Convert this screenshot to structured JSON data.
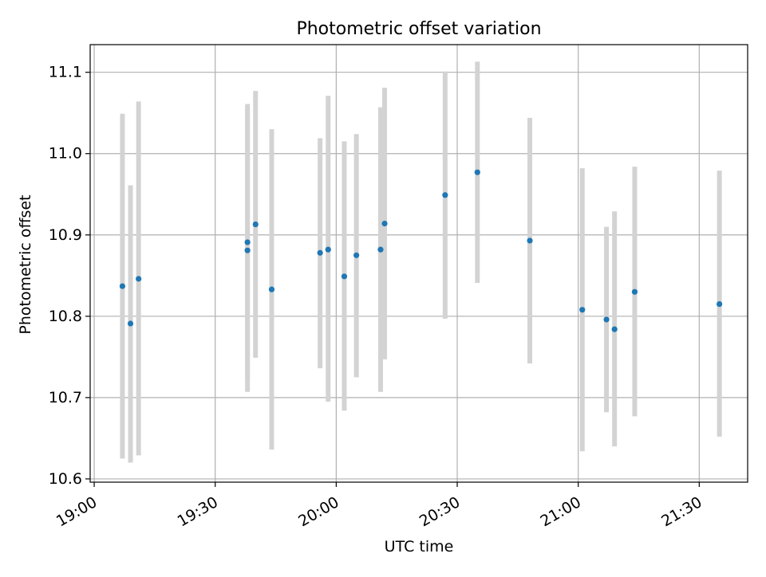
{
  "chart_data": {
    "type": "scatter",
    "title": "Photometric offset variation",
    "xlabel": "UTC time",
    "ylabel": "Photometric offset",
    "x_ticks": [
      "19:00",
      "19:30",
      "20:00",
      "20:30",
      "21:00",
      "21:30"
    ],
    "y_ticks": [
      "10.6",
      "10.7",
      "10.8",
      "10.9",
      "11.0",
      "11.1"
    ],
    "xlim": [
      "18:59",
      "21:42"
    ],
    "ylim": [
      10.596,
      11.134
    ],
    "grid": true,
    "colors": {
      "point": "#1f77b4",
      "errorbar": "#d3d3d3",
      "grid": "#b0b0b0",
      "axes": "#000000"
    },
    "series": [
      {
        "points": [
          {
            "x": "19:07",
            "y": 10.837,
            "ylow": 10.625,
            "yhigh": 11.049
          },
          {
            "x": "19:09",
            "y": 10.791,
            "ylow": 10.62,
            "yhigh": 10.961
          },
          {
            "x": "19:11",
            "y": 10.846,
            "ylow": 10.629,
            "yhigh": 11.064
          },
          {
            "x": "19:38",
            "y": 10.891,
            "ylow": 10.721,
            "yhigh": 11.061
          },
          {
            "x": "19:38",
            "y": 10.881,
            "ylow": 10.707,
            "yhigh": 11.055
          },
          {
            "x": "19:40",
            "y": 10.913,
            "ylow": 10.749,
            "yhigh": 11.077
          },
          {
            "x": "19:44",
            "y": 10.833,
            "ylow": 10.636,
            "yhigh": 11.03
          },
          {
            "x": "19:56",
            "y": 10.878,
            "ylow": 10.736,
            "yhigh": 11.019
          },
          {
            "x": "19:58",
            "y": 10.882,
            "ylow": 10.695,
            "yhigh": 11.071
          },
          {
            "x": "20:02",
            "y": 10.849,
            "ylow": 10.684,
            "yhigh": 11.015
          },
          {
            "x": "20:05",
            "y": 10.875,
            "ylow": 10.725,
            "yhigh": 11.024
          },
          {
            "x": "20:11",
            "y": 10.882,
            "ylow": 10.707,
            "yhigh": 11.057
          },
          {
            "x": "20:12",
            "y": 10.914,
            "ylow": 10.747,
            "yhigh": 11.081
          },
          {
            "x": "20:27",
            "y": 10.949,
            "ylow": 10.797,
            "yhigh": 11.101
          },
          {
            "x": "20:35",
            "y": 10.977,
            "ylow": 10.841,
            "yhigh": 11.113
          },
          {
            "x": "20:48",
            "y": 10.893,
            "ylow": 10.742,
            "yhigh": 11.044
          },
          {
            "x": "21:01",
            "y": 10.808,
            "ylow": 10.634,
            "yhigh": 10.982
          },
          {
            "x": "21:07",
            "y": 10.796,
            "ylow": 10.682,
            "yhigh": 10.91
          },
          {
            "x": "21:09",
            "y": 10.784,
            "ylow": 10.64,
            "yhigh": 10.929
          },
          {
            "x": "21:14",
            "y": 10.83,
            "ylow": 10.677,
            "yhigh": 10.984
          },
          {
            "x": "21:35",
            "y": 10.815,
            "ylow": 10.652,
            "yhigh": 10.979
          }
        ]
      }
    ]
  }
}
